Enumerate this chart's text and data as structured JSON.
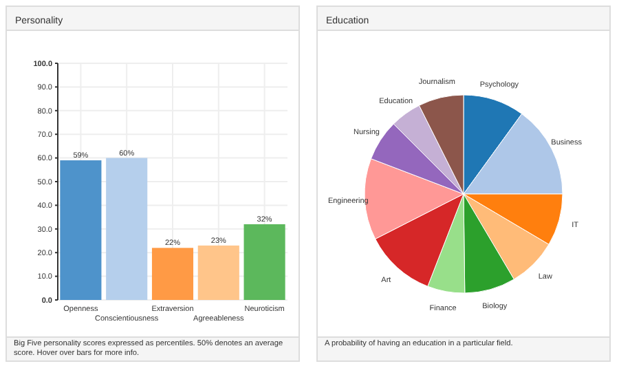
{
  "chart_data": [
    {
      "type": "bar",
      "title": "Personality",
      "categories": [
        "Openness",
        "Conscientiousness",
        "Extraversion",
        "Agreeableness",
        "Neuroticism"
      ],
      "values": [
        59,
        60,
        22,
        23,
        32
      ],
      "value_labels": [
        "59%",
        "60%",
        "22%",
        "23%",
        "32%"
      ],
      "colors": [
        "#4e93cb",
        "#b5cfec",
        "#ff9a45",
        "#ffc58a",
        "#5cb85c"
      ],
      "ylim": [
        0,
        100
      ],
      "yticks": [
        {
          "value": 0,
          "label": "0.0"
        },
        {
          "value": 10,
          "label": "10.0"
        },
        {
          "value": 20,
          "label": "20.0"
        },
        {
          "value": 30,
          "label": "30.0"
        },
        {
          "value": 40,
          "label": "40.0"
        },
        {
          "value": 50,
          "label": "50.0"
        },
        {
          "value": 60,
          "label": "60.0"
        },
        {
          "value": 70,
          "label": "70.0"
        },
        {
          "value": 80,
          "label": "80.0"
        },
        {
          "value": 90,
          "label": "90.0"
        },
        {
          "value": 100,
          "label": "100.0"
        }
      ],
      "grid": true,
      "annotations": [
        "Big Five personality scores expressed as percentiles. 50% denotes an average score. Hover over bars for more info."
      ]
    },
    {
      "type": "pie",
      "title": "Education",
      "categories": [
        "Psychology",
        "Business",
        "IT",
        "Law",
        "Biology",
        "Finance",
        "Art",
        "Engineering",
        "Nursing",
        "Education",
        "Journalism"
      ],
      "values": [
        10,
        15,
        8.5,
        8,
        8.3,
        6.1,
        11.6,
        13.3,
        6.7,
        5.1,
        7.4
      ],
      "colors": [
        "#1f77b4",
        "#aec7e8",
        "#ff7f0e",
        "#ffbb78",
        "#2ca02c",
        "#98df8a",
        "#d62728",
        "#ff9896",
        "#9467bd",
        "#c5b0d5",
        "#8c564b"
      ],
      "annotations": [
        "A probability of having an education in a particular field."
      ]
    }
  ]
}
